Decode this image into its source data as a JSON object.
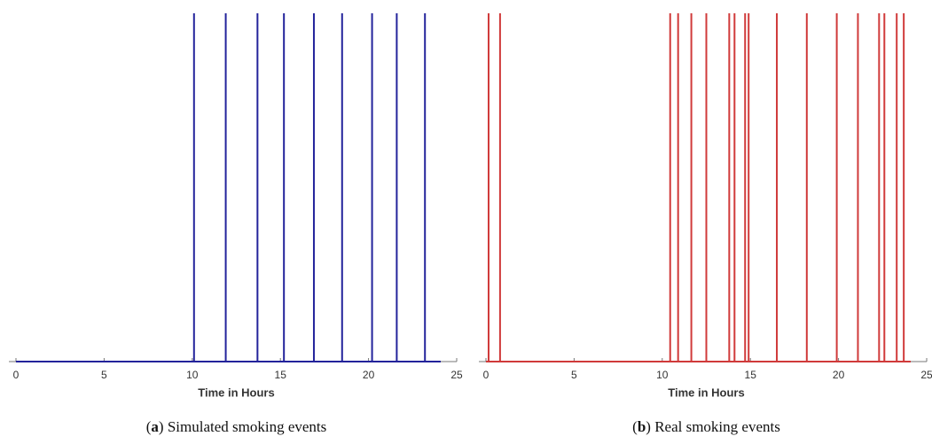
{
  "chart_data": [
    {
      "type": "spike",
      "xlabel": "Time in Hours",
      "color": "#23239b",
      "x": [
        10.1,
        11.9,
        13.7,
        15.2,
        16.9,
        18.5,
        20.2,
        21.6,
        23.2
      ],
      "values": [
        1,
        1,
        1,
        1,
        1,
        1,
        1,
        1,
        1
      ],
      "xlim": [
        0,
        25
      ],
      "xticks": [
        0,
        5,
        10,
        15,
        20,
        25
      ],
      "ylim": [
        0,
        1
      ],
      "caption": [
        "(",
        "a",
        ") Simulated smoking events"
      ]
    },
    {
      "type": "spike",
      "xlabel": "Time in Hours",
      "color": "#d03a3a",
      "x": [
        0.15,
        0.8,
        10.45,
        10.9,
        11.65,
        12.5,
        13.8,
        14.1,
        14.7,
        14.9,
        16.5,
        18.2,
        19.9,
        21.1,
        22.3,
        22.6,
        23.3,
        23.7
      ],
      "values": [
        1,
        1,
        1,
        1,
        1,
        1,
        1,
        1,
        1,
        1,
        1,
        1,
        1,
        1,
        1,
        1,
        1,
        1
      ],
      "xlim": [
        0,
        25
      ],
      "xticks": [
        0,
        5,
        10,
        15,
        20,
        25
      ],
      "ylim": [
        0,
        1
      ],
      "caption": [
        "(",
        "b",
        ") Real smoking events"
      ]
    }
  ]
}
